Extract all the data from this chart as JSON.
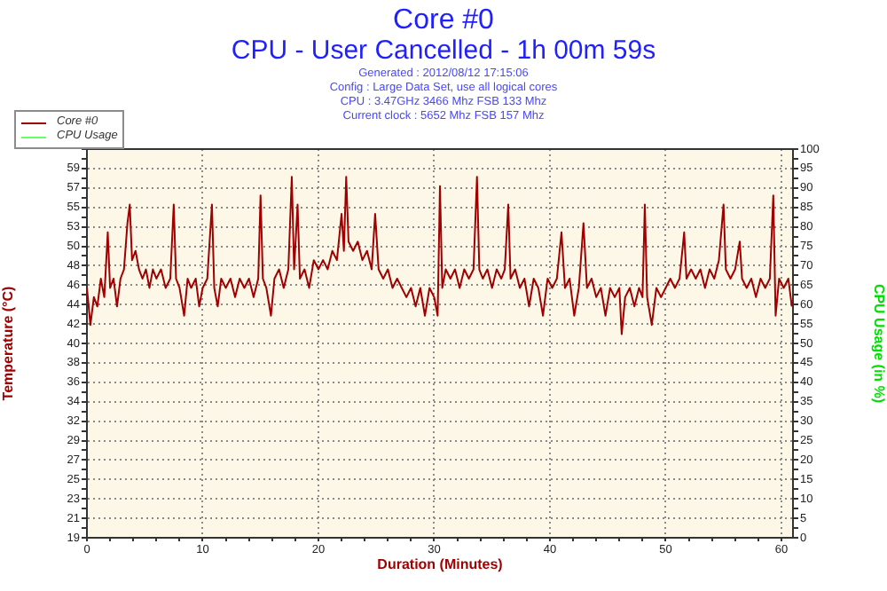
{
  "chart_data": {
    "type": "line",
    "title": "Core #0",
    "subtitle": "CPU - User Cancelled - 1h 00m 59s",
    "annotations": [
      "Generated : 2012/08/12 17:15:06",
      "Config : Large Data Set, use all logical cores",
      "CPU : 3.47GHz 3466 Mhz FSB 133 Mhz",
      "Current clock : 5652 Mhz FSB 157 Mhz"
    ],
    "xlabel": "Duration (Minutes)",
    "ylabel": "Temperature (°C)",
    "y2label": "CPU Usage (in %)",
    "x": [
      0,
      0.3,
      0.6,
      0.9,
      1.2,
      1.5,
      1.8,
      2,
      2.3,
      2.6,
      2.9,
      3.2,
      3.5,
      3.7,
      3.9,
      4.2,
      4.5,
      4.8,
      5.1,
      5.4,
      5.7,
      6,
      6.4,
      6.8,
      7.2,
      7.5,
      7.7,
      8,
      8.4,
      8.7,
      9,
      9.4,
      9.7,
      10,
      10.4,
      10.8,
      11,
      11.3,
      11.6,
      12,
      12.4,
      12.8,
      13.2,
      13.6,
      14,
      14.4,
      14.8,
      15,
      15.2,
      15.5,
      15.9,
      16.2,
      16.6,
      17,
      17.4,
      17.7,
      17.9,
      18.2,
      18.4,
      18.8,
      19.2,
      19.6,
      20,
      20.4,
      20.8,
      21.2,
      21.6,
      22,
      22.2,
      22.4,
      22.6,
      23,
      23.4,
      23.8,
      24.2,
      24.6,
      24.9,
      25.2,
      25.6,
      26,
      26.4,
      26.8,
      27.2,
      27.6,
      28,
      28.4,
      28.8,
      29.2,
      29.6,
      30,
      30.3,
      30.5,
      30.7,
      31,
      31.4,
      31.8,
      32.2,
      32.6,
      33,
      33.4,
      33.7,
      33.9,
      34.2,
      34.6,
      35,
      35.4,
      35.8,
      36.1,
      36.4,
      36.6,
      37,
      37.4,
      37.8,
      38.2,
      38.6,
      39,
      39.4,
      39.8,
      40.2,
      40.6,
      41,
      41.3,
      41.7,
      42.1,
      42.5,
      42.9,
      43.2,
      43.6,
      44,
      44.4,
      44.8,
      45.2,
      45.6,
      46,
      46.2,
      46.5,
      46.9,
      47.3,
      47.7,
      48,
      48.2,
      48.4,
      48.8,
      49.2,
      49.6,
      50,
      50.4,
      50.8,
      51.2,
      51.6,
      51.8,
      52.2,
      52.6,
      53,
      53.4,
      53.8,
      54.2,
      54.6,
      55,
      55.2,
      55.6,
      56,
      56.4,
      56.6,
      57,
      57.4,
      57.8,
      58.2,
      58.6,
      59,
      59.3,
      59.5,
      59.8,
      60.2,
      60.6,
      60.9
    ],
    "series": [
      {
        "name": "Core #0",
        "color": "#a00000",
        "values": [
          46,
          42,
          45,
          44,
          47,
          45,
          52,
          46,
          47,
          44,
          47,
          48,
          53,
          55,
          49,
          50,
          48,
          47,
          48,
          46,
          48,
          47,
          48,
          46,
          47,
          55,
          47,
          46,
          43,
          47,
          46,
          47,
          44,
          46,
          47,
          55,
          46,
          44,
          47,
          46,
          47,
          45,
          47,
          46,
          47,
          45,
          47,
          56,
          47,
          46,
          43,
          47,
          48,
          46,
          48,
          58,
          48,
          55,
          47,
          48,
          46,
          49,
          48,
          49,
          48,
          50,
          49,
          54,
          50,
          58,
          51,
          50,
          51,
          49,
          50,
          48,
          54,
          48,
          47,
          48,
          46,
          47,
          46,
          45,
          46,
          44,
          46,
          43,
          46,
          45,
          43,
          57,
          46,
          48,
          47,
          48,
          46,
          48,
          47,
          48,
          58,
          48,
          47,
          48,
          46,
          48,
          47,
          48,
          55,
          47,
          48,
          46,
          47,
          44,
          47,
          46,
          43,
          47,
          46,
          47,
          52,
          46,
          47,
          43,
          46,
          53,
          46,
          47,
          45,
          46,
          43,
          46,
          45,
          46,
          41,
          45,
          46,
          44,
          46,
          45,
          55,
          45,
          42,
          46,
          45,
          46,
          47,
          46,
          47,
          52,
          47,
          48,
          47,
          48,
          46,
          48,
          47,
          49,
          55,
          48,
          47,
          48,
          51,
          47,
          46,
          47,
          45,
          47,
          46,
          47,
          56,
          43,
          47,
          46,
          47,
          44
        ]
      },
      {
        "name": "CPU Usage",
        "color": "#66ff66",
        "values": [
          null,
          null,
          null,
          null,
          null,
          null,
          null,
          null,
          null,
          null,
          null,
          null,
          null,
          null,
          null,
          null,
          null,
          null,
          null,
          null,
          null,
          null,
          null,
          null,
          null,
          null,
          null,
          null,
          null,
          null,
          null,
          null,
          null,
          null,
          null,
          null,
          null,
          null,
          null,
          null,
          null,
          null,
          null,
          null,
          null,
          null,
          null,
          null,
          null,
          null,
          null,
          null,
          null,
          null,
          null,
          null,
          null,
          null,
          null,
          null,
          null,
          null,
          null,
          null,
          null,
          null,
          null,
          null,
          null,
          null,
          null,
          null,
          null,
          null,
          null,
          null,
          null,
          null,
          null,
          null,
          null,
          null,
          null,
          null,
          null,
          null,
          null,
          null,
          null,
          null,
          null,
          null,
          null,
          null,
          null,
          null,
          null,
          null,
          null,
          null,
          null,
          null,
          null,
          null,
          null,
          null,
          null,
          null,
          null,
          null,
          null,
          null,
          null,
          null,
          null,
          null,
          null,
          null,
          null,
          null,
          null,
          null,
          null,
          null,
          null,
          null,
          null,
          null,
          null,
          null,
          null,
          null,
          null,
          null,
          null,
          null,
          null,
          null,
          null,
          null,
          null,
          null,
          null,
          null,
          null,
          null,
          null,
          null,
          null,
          null,
          null,
          null,
          null,
          null,
          null,
          null,
          null,
          null,
          null,
          null,
          null,
          null,
          null,
          null,
          null,
          null,
          null,
          null,
          null,
          null,
          null,
          null,
          null,
          null,
          null,
          null
        ]
      }
    ],
    "xlim": [
      0,
      61
    ],
    "xticks": [
      0,
      {
        "value": 2,
        "label": null
      },
      {
        "value": 4,
        "label": null
      },
      {
        "value": 6,
        "label": null
      },
      {
        "value": 8,
        "label": null
      },
      10,
      {
        "value": 12,
        "label": null
      },
      {
        "value": 14,
        "label": null
      },
      {
        "value": 16,
        "label": null
      },
      {
        "value": 18,
        "label": null
      },
      20,
      {
        "value": 22,
        "label": null
      },
      {
        "value": 24,
        "label": null
      },
      {
        "value": 26,
        "label": null
      },
      {
        "value": 28,
        "label": null
      },
      30,
      {
        "value": 32,
        "label": null
      },
      {
        "value": 34,
        "label": null
      },
      {
        "value": 36,
        "label": null
      },
      {
        "value": 38,
        "label": null
      },
      40,
      {
        "value": 42,
        "label": null
      },
      {
        "value": 44,
        "label": null
      },
      {
        "value": 46,
        "label": null
      },
      {
        "value": 48,
        "label": null
      },
      50,
      {
        "value": 52,
        "label": null
      },
      {
        "value": 54,
        "label": null
      },
      {
        "value": 56,
        "label": null
      },
      {
        "value": 58,
        "label": null
      },
      60
    ],
    "ylim": [
      19,
      61
    ],
    "yticks": [
      19,
      {
        "value": 20.05,
        "label": null
      },
      {
        "value": 21.1,
        "label": "21"
      },
      {
        "value": 22.15,
        "label": null
      },
      {
        "value": 23.2,
        "label": "23"
      },
      {
        "value": 24.25,
        "label": null
      },
      {
        "value": 25.3,
        "label": "25"
      },
      {
        "value": 26.35,
        "label": null
      },
      {
        "value": 27.4,
        "label": "27"
      },
      {
        "value": 28.45,
        "label": null
      },
      {
        "value": 29.5,
        "label": "29"
      },
      {
        "value": 30.55,
        "label": null
      },
      {
        "value": 31.6,
        "label": "32"
      },
      {
        "value": 32.65,
        "label": null
      },
      {
        "value": 33.7,
        "label": "34"
      },
      {
        "value": 34.75,
        "label": null
      },
      {
        "value": 35.8,
        "label": "36"
      },
      {
        "value": 36.85,
        "label": null
      },
      {
        "value": 37.9,
        "label": "38"
      },
      {
        "value": 38.95,
        "label": null
      },
      40,
      {
        "value": 41.05,
        "label": null
      },
      {
        "value": 42.1,
        "label": "42"
      },
      {
        "value": 43.15,
        "label": null
      },
      {
        "value": 44.2,
        "label": "44"
      },
      {
        "value": 45.25,
        "label": null
      },
      {
        "value": 46.3,
        "label": "46"
      },
      {
        "value": 47.35,
        "label": null
      },
      {
        "value": 48.4,
        "label": "48"
      },
      {
        "value": 49.45,
        "label": null
      },
      {
        "value": 50.5,
        "label": "50"
      },
      {
        "value": 51.55,
        "label": null
      },
      {
        "value": 52.6,
        "label": "53"
      },
      {
        "value": 53.65,
        "label": null
      },
      {
        "value": 54.7,
        "label": "55"
      },
      {
        "value": 55.75,
        "label": null
      },
      {
        "value": 56.8,
        "label": "57"
      },
      {
        "value": 57.85,
        "label": null
      },
      {
        "value": 58.9,
        "label": "59"
      },
      {
        "value": 59.95,
        "label": null
      },
      {
        "value": 61,
        "label": null
      }
    ],
    "y2lim": [
      0,
      100
    ],
    "y2ticks": [
      0,
      {
        "value": 2.5,
        "label": null
      },
      5,
      {
        "value": 7.5,
        "label": null
      },
      10,
      {
        "value": 12.5,
        "label": null
      },
      15,
      {
        "value": 17.5,
        "label": null
      },
      20,
      {
        "value": 22.5,
        "label": null
      },
      25,
      {
        "value": 27.5,
        "label": null
      },
      30,
      {
        "value": 32.5,
        "label": null
      },
      35,
      {
        "value": 37.5,
        "label": null
      },
      40,
      {
        "value": 42.5,
        "label": null
      },
      45,
      {
        "value": 47.5,
        "label": null
      },
      50,
      {
        "value": 52.5,
        "label": null
      },
      55,
      {
        "value": 57.5,
        "label": null
      },
      60,
      {
        "value": 62.5,
        "label": null
      },
      65,
      {
        "value": 67.5,
        "label": null
      },
      70,
      {
        "value": 72.5,
        "label": null
      },
      75,
      {
        "value": 77.5,
        "label": null
      },
      80,
      {
        "value": 82.5,
        "label": null
      },
      85,
      {
        "value": 87.5,
        "label": null
      },
      90,
      {
        "value": 92.5,
        "label": null
      },
      95,
      {
        "value": 97.5,
        "label": null
      },
      100
    ],
    "grid": true,
    "legend": "top left",
    "marker": "none"
  }
}
